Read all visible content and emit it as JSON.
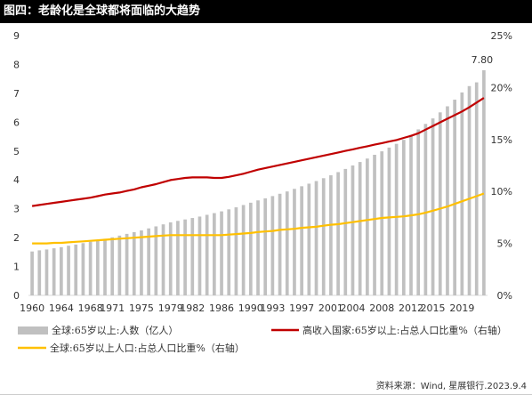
{
  "header": {
    "title": "图四：老龄化是全球都将面临的大趋势"
  },
  "source": "资料来源：Wind, 星展银行.2023.9.4",
  "chart_data": {
    "type": "bar",
    "title": "图四：老龄化是全球都将面临的大趋势",
    "x_start": 1960,
    "x_end": 2022,
    "x_ticks": [
      "1960",
      "1964",
      "1968",
      "1971",
      "1975",
      "1979",
      "1982",
      "1986",
      "1990",
      "1993",
      "1997",
      "2001",
      "2004",
      "2008",
      "2012",
      "2015",
      "2019"
    ],
    "ylim_left": [
      0,
      9
    ],
    "y_ticks_left": [
      "0",
      "1",
      "2",
      "3",
      "4",
      "5",
      "6",
      "7",
      "8",
      "9"
    ],
    "ylim_right": [
      0,
      25
    ],
    "y_ticks_right": [
      "0%",
      "5%",
      "10%",
      "15%",
      "20%",
      "25%"
    ],
    "last_label": "7.80",
    "colors": {
      "bars": "#c0c0c0",
      "high_income": "#c00000",
      "global_share": "#ffc000"
    },
    "series": [
      {
        "name": "全球:65岁以上:人数（亿人）",
        "axis": "left",
        "type": "bar",
        "values": [
          1.52,
          1.56,
          1.59,
          1.63,
          1.67,
          1.72,
          1.76,
          1.81,
          1.86,
          1.91,
          1.96,
          2.01,
          2.07,
          2.13,
          2.19,
          2.25,
          2.32,
          2.39,
          2.46,
          2.53,
          2.58,
          2.63,
          2.68,
          2.73,
          2.79,
          2.85,
          2.91,
          2.98,
          3.05,
          3.13,
          3.21,
          3.29,
          3.36,
          3.44,
          3.52,
          3.6,
          3.69,
          3.78,
          3.87,
          3.96,
          4.06,
          4.16,
          4.27,
          4.38,
          4.5,
          4.62,
          4.74,
          4.87,
          4.99,
          5.12,
          5.25,
          5.39,
          5.56,
          5.75,
          5.94,
          6.13,
          6.34,
          6.55,
          6.78,
          7.03,
          7.25,
          7.38,
          7.8
        ]
      },
      {
        "name": "高收入国家:65岁以上:占总人口比重%（右轴）",
        "axis": "right",
        "type": "line",
        "values": [
          8.6,
          8.7,
          8.8,
          8.9,
          9.0,
          9.1,
          9.2,
          9.3,
          9.4,
          9.55,
          9.7,
          9.8,
          9.9,
          10.05,
          10.2,
          10.4,
          10.55,
          10.7,
          10.9,
          11.1,
          11.2,
          11.3,
          11.35,
          11.35,
          11.35,
          11.3,
          11.3,
          11.4,
          11.55,
          11.7,
          11.9,
          12.1,
          12.25,
          12.4,
          12.55,
          12.7,
          12.85,
          13.0,
          13.15,
          13.3,
          13.45,
          13.6,
          13.75,
          13.9,
          14.05,
          14.2,
          14.35,
          14.5,
          14.65,
          14.8,
          14.95,
          15.15,
          15.35,
          15.6,
          15.95,
          16.3,
          16.65,
          17.0,
          17.35,
          17.7,
          18.1,
          18.55,
          19.0
        ]
      },
      {
        "name": "全球:65岁以上人口:占总人口比重%（右轴）",
        "axis": "right",
        "type": "line",
        "values": [
          5.0,
          5.0,
          5.0,
          5.05,
          5.05,
          5.1,
          5.15,
          5.2,
          5.25,
          5.3,
          5.35,
          5.4,
          5.45,
          5.5,
          5.55,
          5.6,
          5.65,
          5.7,
          5.75,
          5.8,
          5.8,
          5.8,
          5.8,
          5.8,
          5.8,
          5.8,
          5.8,
          5.85,
          5.9,
          5.95,
          6.0,
          6.1,
          6.15,
          6.2,
          6.3,
          6.35,
          6.4,
          6.5,
          6.55,
          6.6,
          6.7,
          6.8,
          6.85,
          6.95,
          7.05,
          7.15,
          7.25,
          7.35,
          7.45,
          7.5,
          7.55,
          7.6,
          7.7,
          7.8,
          7.95,
          8.15,
          8.35,
          8.55,
          8.8,
          9.05,
          9.3,
          9.55,
          9.8
        ]
      }
    ],
    "legend_placement": "bottom"
  }
}
